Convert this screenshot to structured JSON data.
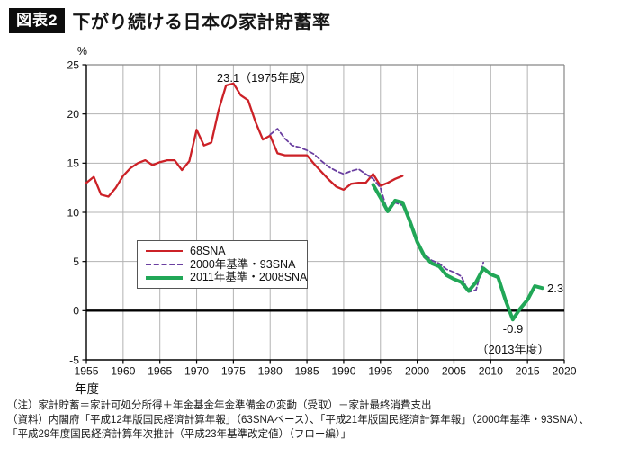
{
  "header": {
    "tag": "図表2",
    "title": "下がり続ける日本の家計貯蓄率"
  },
  "chart_data": {
    "type": "line",
    "title": "下がり続ける日本の家計貯蓄率",
    "unit_label": "%",
    "xlabel": "年度",
    "ylabel": "%",
    "xlim": [
      1955,
      2020
    ],
    "ylim": [
      -5,
      25
    ],
    "x_ticks": [
      1955,
      1960,
      1965,
      1970,
      1975,
      1980,
      1985,
      1990,
      1995,
      2000,
      2005,
      2010,
      2015,
      2020
    ],
    "y_ticks": [
      25,
      20,
      15,
      10,
      5,
      0,
      -5
    ],
    "grid": true,
    "legend_position": "inside-left-middle",
    "series": [
      {
        "name": "68SNA",
        "color": "#cc2127",
        "style": "solid",
        "width": 2.3,
        "start_year": 1955,
        "values": [
          13.0,
          13.6,
          11.8,
          11.6,
          12.5,
          13.7,
          14.5,
          15.0,
          15.3,
          14.8,
          15.1,
          15.3,
          15.3,
          14.3,
          15.2,
          18.4,
          16.8,
          17.1,
          20.4,
          22.9,
          23.1,
          21.9,
          21.4,
          19.2,
          17.4,
          17.8,
          16.0,
          15.8,
          15.8,
          15.8,
          15.8,
          14.9,
          14.1,
          13.3,
          12.6,
          12.3,
          12.9,
          13.0,
          13.0,
          13.9,
          12.7,
          13.0,
          13.4,
          13.7
        ]
      },
      {
        "name": "2000年基準・93SNA",
        "color": "#6a3fa0",
        "style": "dashed",
        "width": 1.8,
        "start_year": 1980,
        "values": [
          17.9,
          18.5,
          17.5,
          16.8,
          16.6,
          16.3,
          15.9,
          15.2,
          14.6,
          14.2,
          13.9,
          14.2,
          14.4,
          13.9,
          13.4,
          12.5,
          10.0,
          11.0,
          10.7,
          9.4,
          7.2,
          5.7,
          5.1,
          4.8,
          4.2,
          3.9,
          3.5,
          1.9,
          2.1,
          4.9
        ]
      },
      {
        "name": "2011年基準・2008SNA",
        "color": "#21a757",
        "style": "solid",
        "width": 4,
        "start_year": 1994,
        "values": [
          12.8,
          11.5,
          10.1,
          11.2,
          11.0,
          9.1,
          7.0,
          5.5,
          4.8,
          4.5,
          3.6,
          3.2,
          2.9,
          2.0,
          2.9,
          4.3,
          3.7,
          3.4,
          1.1,
          -0.9,
          0.2,
          1.1,
          2.5,
          2.3
        ]
      }
    ],
    "annotations": {
      "peak": "23.1（1975年度）",
      "end_value": "2.3",
      "dip_value": "-0.9",
      "dip_year": "（2013年度）"
    }
  },
  "notes": {
    "line1": "（注）家計貯蓄＝家計可処分所得＋年金基金年金準備金の変動（受取）－家計最終消費支出",
    "line2": "（資料）内閣府「平成12年版国民経済計算年報」（63SNAベース）、「平成21年版国民経済計算年報」（2000年基準・93SNA）、",
    "line3": "「平成29年度国民経済計算年次推計（平成23年基準改定値）（フロー編）」"
  }
}
